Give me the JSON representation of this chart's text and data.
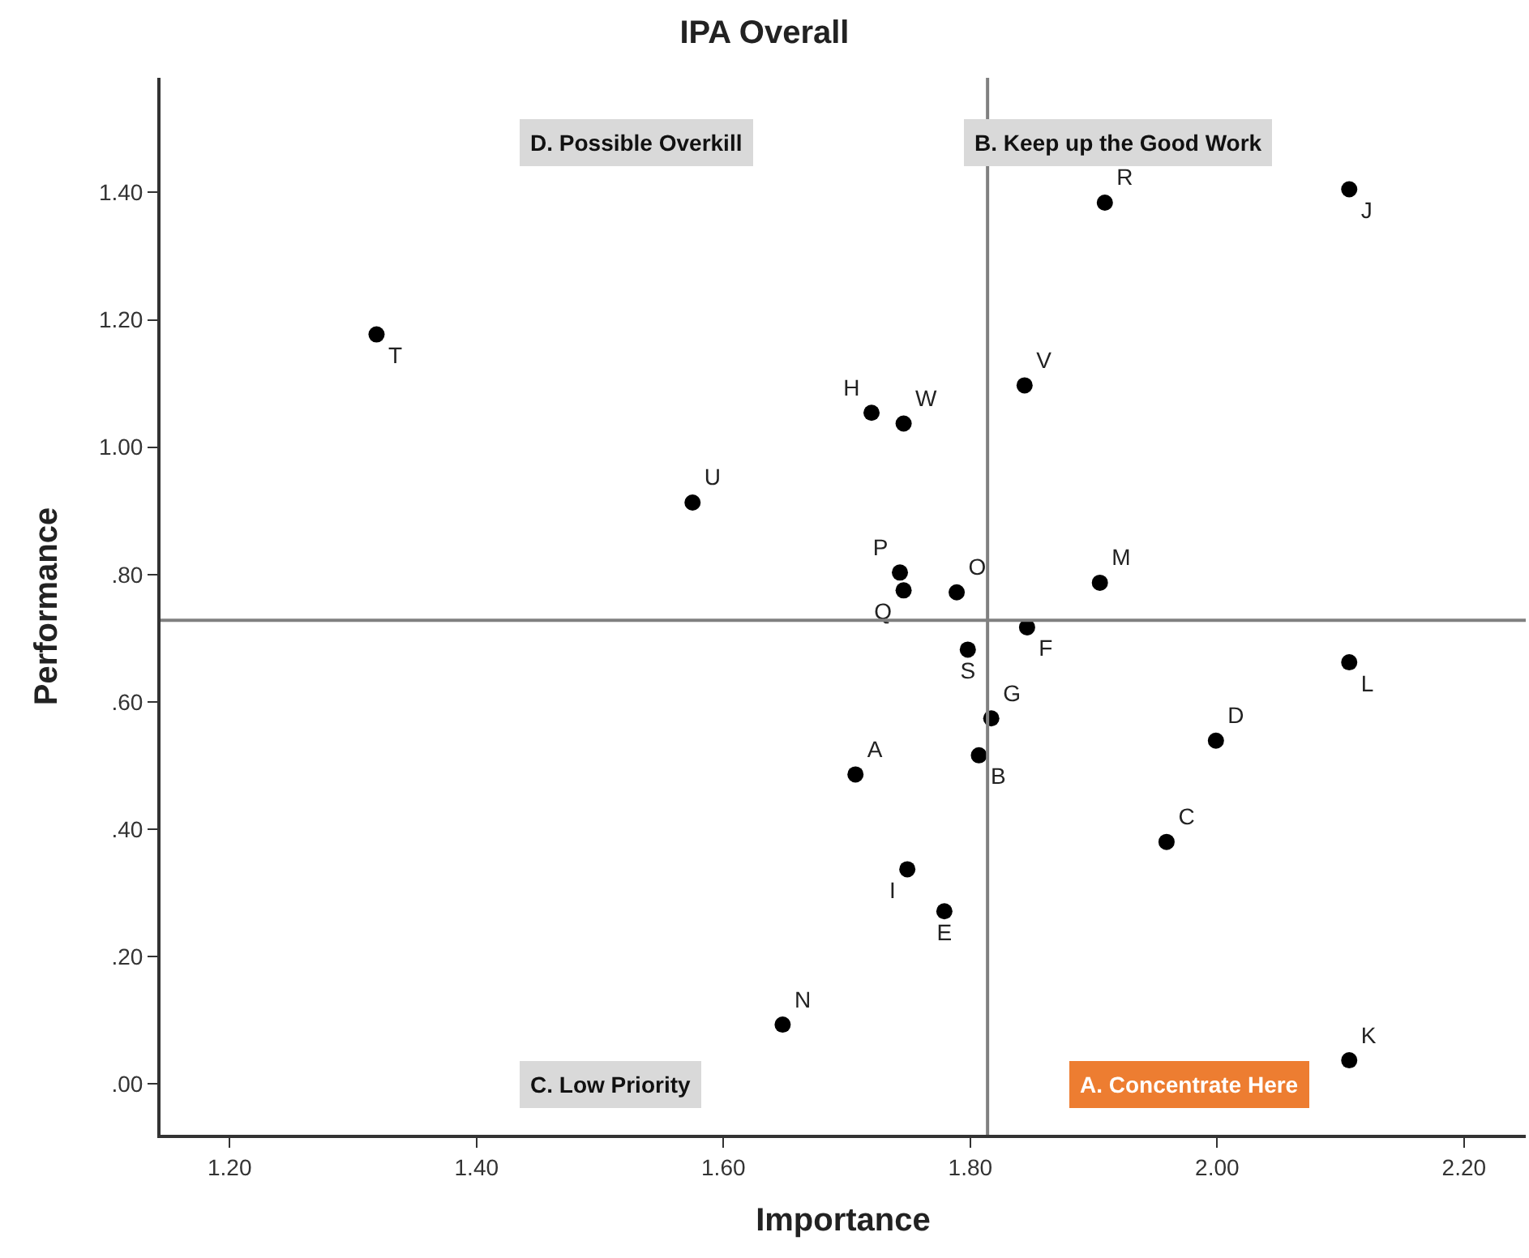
{
  "chart_data": {
    "type": "scatter",
    "title": "IPA Overall",
    "xlabel": "Importance",
    "ylabel": "Performance",
    "x": [
      1.319,
      1.575,
      1.72,
      1.746,
      1.844,
      1.909,
      2.107,
      1.743,
      1.746,
      1.789,
      1.798,
      1.846,
      1.905,
      1.817,
      1.807,
      1.707,
      1.959,
      1.749,
      1.779,
      2.107,
      1.999,
      1.648,
      2.107
    ],
    "values": [
      1.177,
      0.913,
      1.054,
      1.037,
      1.097,
      1.384,
      1.405,
      0.803,
      0.775,
      0.772,
      0.682,
      0.717,
      0.787,
      0.574,
      0.516,
      0.486,
      0.38,
      0.337,
      0.271,
      0.662,
      0.539,
      0.093,
      0.037
    ],
    "value_labels": [
      "T",
      "U",
      "H",
      "W",
      "V",
      "R",
      "J",
      "P",
      "Q",
      "O",
      "S",
      "F",
      "M",
      "G",
      "B",
      "A",
      "C",
      "I",
      "E",
      "L",
      "D",
      "N",
      "K"
    ],
    "color": "#000000",
    "marker": "circle",
    "xlim": [
      1.144,
      2.25
    ],
    "ylim": [
      -0.08,
      1.58
    ],
    "xticks": [
      {
        "value": 1.2,
        "label": "1.20"
      },
      {
        "value": 1.4,
        "label": "1.40"
      },
      {
        "value": 1.6,
        "label": "1.60"
      },
      {
        "value": 1.8,
        "label": "1.80"
      },
      {
        "value": 2.0,
        "label": "2.00"
      },
      {
        "value": 2.2,
        "label": "2.20"
      }
    ],
    "yticks": [
      {
        "value": 0,
        "label": ".00"
      },
      {
        "value": 0.2,
        "label": ".20"
      },
      {
        "value": 0.4,
        "label": ".40"
      },
      {
        "value": 0.6,
        "label": ".60"
      },
      {
        "value": 0.8,
        "label": ".80"
      },
      {
        "value": 1.0,
        "label": "1.00"
      },
      {
        "value": 1.2,
        "label": "1.20"
      },
      {
        "value": 1.4,
        "label": "1.40"
      }
    ],
    "ref_lines": [
      {
        "axis": "x",
        "value": 1.814,
        "color": "#808080"
      },
      {
        "axis": "y",
        "value": 0.728,
        "color": "#808080"
      }
    ],
    "annotations": [
      "D. Possible Overkill",
      "B. Keep up the Good Work",
      "C. Low Priority",
      "A. Concentrate Here"
    ],
    "grid": false,
    "legend": false
  }
}
